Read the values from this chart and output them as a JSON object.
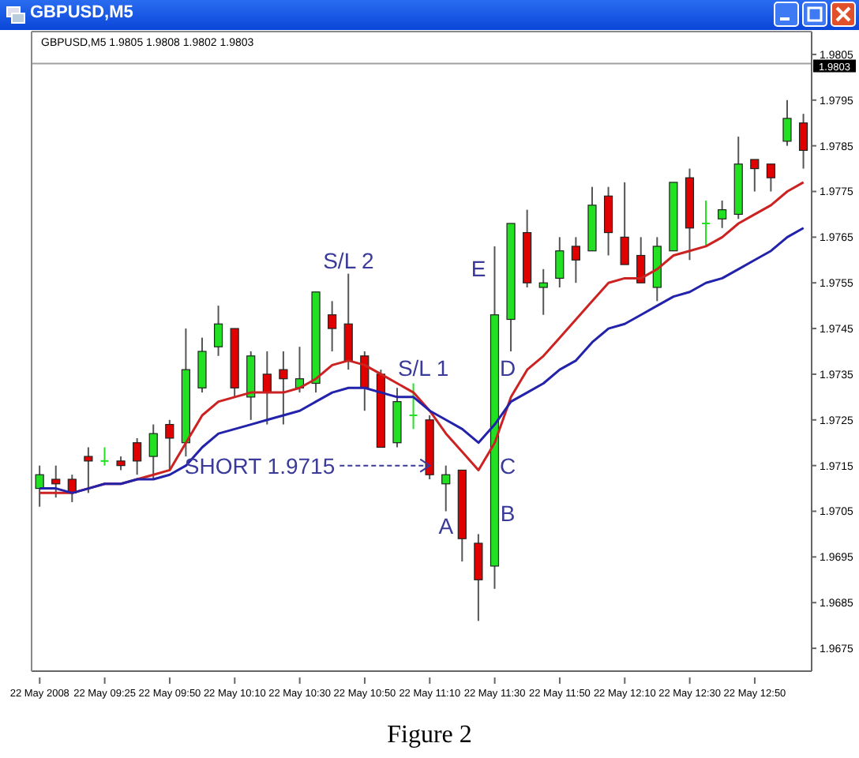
{
  "chart_data": {
    "type": "candlestick",
    "title": "GBPUSD,M5",
    "subtitle": "GBPUSD,M5  1.9805 1.9808 1.9802 1.9803",
    "categories": [
      "22 May 2008",
      null,
      null,
      null,
      "22 May 09:25",
      null,
      null,
      null,
      "22 May 09:50",
      null,
      null,
      null,
      "22 May 10:10",
      null,
      null,
      null,
      "22 May 10:30",
      null,
      null,
      null,
      "22 May 10:50",
      null,
      null,
      null,
      "22 May 11:10",
      null,
      null,
      null,
      "22 May 11:30",
      null,
      null,
      null,
      "22 May 11:50",
      null,
      null,
      null,
      "22 May 12:10",
      null,
      null,
      null,
      "22 May 12:30",
      null,
      null,
      null,
      "22 May 12:50",
      null,
      null,
      null
    ],
    "ohlc": [
      [
        1.971,
        1.9715,
        1.9706,
        1.9713
      ],
      [
        1.9712,
        1.9715,
        1.9708,
        1.9711
      ],
      [
        1.9712,
        1.9713,
        1.9707,
        1.9709
      ],
      [
        1.9717,
        1.9719,
        1.9709,
        1.9716
      ],
      [
        1.9716,
        1.9719,
        1.9715,
        1.9716
      ],
      [
        1.9716,
        1.9717,
        1.9714,
        1.9715
      ],
      [
        1.972,
        1.9721,
        1.9713,
        1.9716
      ],
      [
        1.9717,
        1.9724,
        1.9712,
        1.9722
      ],
      [
        1.9724,
        1.9725,
        1.9714,
        1.9721
      ],
      [
        1.972,
        1.9745,
        1.9717,
        1.9736
      ],
      [
        1.9732,
        1.9743,
        1.9731,
        1.974
      ],
      [
        1.9741,
        1.975,
        1.9739,
        1.9746
      ],
      [
        1.9745,
        1.9745,
        1.973,
        1.9732
      ],
      [
        1.973,
        1.974,
        1.9725,
        1.9739
      ],
      [
        1.9735,
        1.974,
        1.9724,
        1.9731
      ],
      [
        1.9736,
        1.974,
        1.9724,
        1.9734
      ],
      [
        1.9732,
        1.9741,
        1.9731,
        1.9734
      ],
      [
        1.9733,
        1.9753,
        1.9731,
        1.9753
      ],
      [
        1.9748,
        1.9751,
        1.974,
        1.9745
      ],
      [
        1.9746,
        1.9757,
        1.9736,
        1.9738
      ],
      [
        1.9739,
        1.974,
        1.9727,
        1.9732
      ],
      [
        1.9735,
        1.9736,
        1.9719,
        1.9719
      ],
      [
        1.972,
        1.9732,
        1.9719,
        1.9729
      ],
      [
        1.9726,
        1.9733,
        1.9723,
        1.9726
      ],
      [
        1.9725,
        1.9726,
        1.9712,
        1.9713
      ],
      [
        1.9711,
        1.9715,
        1.9705,
        1.9713
      ],
      [
        1.9714,
        1.9714,
        1.9694,
        1.9699
      ],
      [
        1.9698,
        1.97,
        1.9681,
        1.969
      ],
      [
        1.9693,
        1.9763,
        1.9688,
        1.9748
      ],
      [
        1.9747,
        1.9768,
        1.974,
        1.9768
      ],
      [
        1.9766,
        1.9771,
        1.9754,
        1.9755
      ],
      [
        1.9754,
        1.9758,
        1.9748,
        1.9755
      ],
      [
        1.9756,
        1.9765,
        1.9754,
        1.9762
      ],
      [
        1.9763,
        1.9765,
        1.9755,
        1.976
      ],
      [
        1.9762,
        1.9776,
        1.9762,
        1.9772
      ],
      [
        1.9774,
        1.9776,
        1.9761,
        1.9766
      ],
      [
        1.9765,
        1.9777,
        1.9759,
        1.9759
      ],
      [
        1.9761,
        1.9765,
        1.9755,
        1.9755
      ],
      [
        1.9754,
        1.9765,
        1.9751,
        1.9763
      ],
      [
        1.9762,
        1.9777,
        1.9762,
        1.9777
      ],
      [
        1.9778,
        1.978,
        1.976,
        1.9767
      ],
      [
        1.9768,
        1.9773,
        1.9763,
        1.9768
      ],
      [
        1.9769,
        1.9773,
        1.9767,
        1.9771
      ],
      [
        1.977,
        1.9787,
        1.9769,
        1.9781
      ],
      [
        1.9782,
        1.9782,
        1.9775,
        1.978
      ],
      [
        1.9781,
        1.9781,
        1.9775,
        1.9778
      ],
      [
        1.9786,
        1.9795,
        1.9785,
        1.9791
      ],
      [
        1.979,
        1.9792,
        1.978,
        1.9784
      ]
    ],
    "colors": [
      "#22e022",
      "#e00000",
      "#e00000",
      "#e00000",
      "#22e022",
      "#e00000",
      "#e00000",
      "#22e022",
      "#e00000",
      "#22e022",
      "#22e022",
      "#22e022",
      "#e00000",
      "#22e022",
      "#e00000",
      "#e00000",
      "#22e022",
      "#22e022",
      "#e00000",
      "#e00000",
      "#e00000",
      "#e00000",
      "#22e022",
      "#22e022",
      "#e00000",
      "#22e022",
      "#e00000",
      "#e00000",
      "#22e022",
      "#22e022",
      "#e00000",
      "#22e022",
      "#22e022",
      "#e00000",
      "#22e022",
      "#e00000",
      "#e00000",
      "#e00000",
      "#22e022",
      "#22e022",
      "#e00000",
      "#22e022",
      "#22e022",
      "#22e022",
      "#e00000",
      "#e00000",
      "#22e022",
      "#e00000"
    ],
    "series": [
      {
        "type": "line",
        "color": "#cc2222",
        "values": [
          1.9709,
          1.9709,
          1.9709,
          1.971,
          1.9711,
          1.9711,
          1.9712,
          1.9713,
          1.9714,
          1.972,
          1.9726,
          1.9729,
          1.973,
          1.9731,
          1.9731,
          1.9731,
          1.9732,
          1.9734,
          1.9737,
          1.9738,
          1.9737,
          1.9735,
          1.9733,
          1.9731,
          1.9727,
          1.9722,
          1.9718,
          1.9714,
          1.972,
          1.973,
          1.9736,
          1.9739,
          1.9743,
          1.9747,
          1.9751,
          1.9755,
          1.9756,
          1.9756,
          1.9758,
          1.9761,
          1.9762,
          1.9763,
          1.9765,
          1.9768,
          1.977,
          1.9772,
          1.9775,
          1.9777
        ]
      },
      {
        "type": "line",
        "color": "#2222aa",
        "values": [
          1.971,
          1.971,
          1.9709,
          1.971,
          1.9711,
          1.9711,
          1.9712,
          1.9712,
          1.9713,
          1.9715,
          1.9719,
          1.9722,
          1.9723,
          1.9724,
          1.9725,
          1.9726,
          1.9727,
          1.9729,
          1.9731,
          1.9732,
          1.9732,
          1.9731,
          1.973,
          1.973,
          1.9727,
          1.9725,
          1.9723,
          1.972,
          1.9724,
          1.9729,
          1.9731,
          1.9733,
          1.9736,
          1.9738,
          1.9742,
          1.9745,
          1.9746,
          1.9748,
          1.975,
          1.9752,
          1.9753,
          1.9755,
          1.9756,
          1.9758,
          1.976,
          1.9762,
          1.9765,
          1.9767
        ]
      }
    ],
    "ylim": [
      1.967,
      1.981
    ],
    "yticks": [
      1.9675,
      1.9685,
      1.9695,
      1.9705,
      1.9715,
      1.9725,
      1.9735,
      1.9745,
      1.9755,
      1.9765,
      1.9775,
      1.9785,
      1.9795,
      1.9805
    ],
    "ref_lines": [
      {
        "axis": "y",
        "value": 1.9803,
        "label": "1.9803",
        "color": "#a0a0a0"
      }
    ],
    "annotations": [
      "S/L 2",
      "S/L 1",
      {
        "text": "SHORT 1.9715",
        "x": "22 May 11:10",
        "y": 1.9715
      },
      "A",
      "B",
      "C",
      "D",
      "E",
      "Figure 2"
    ]
  }
}
